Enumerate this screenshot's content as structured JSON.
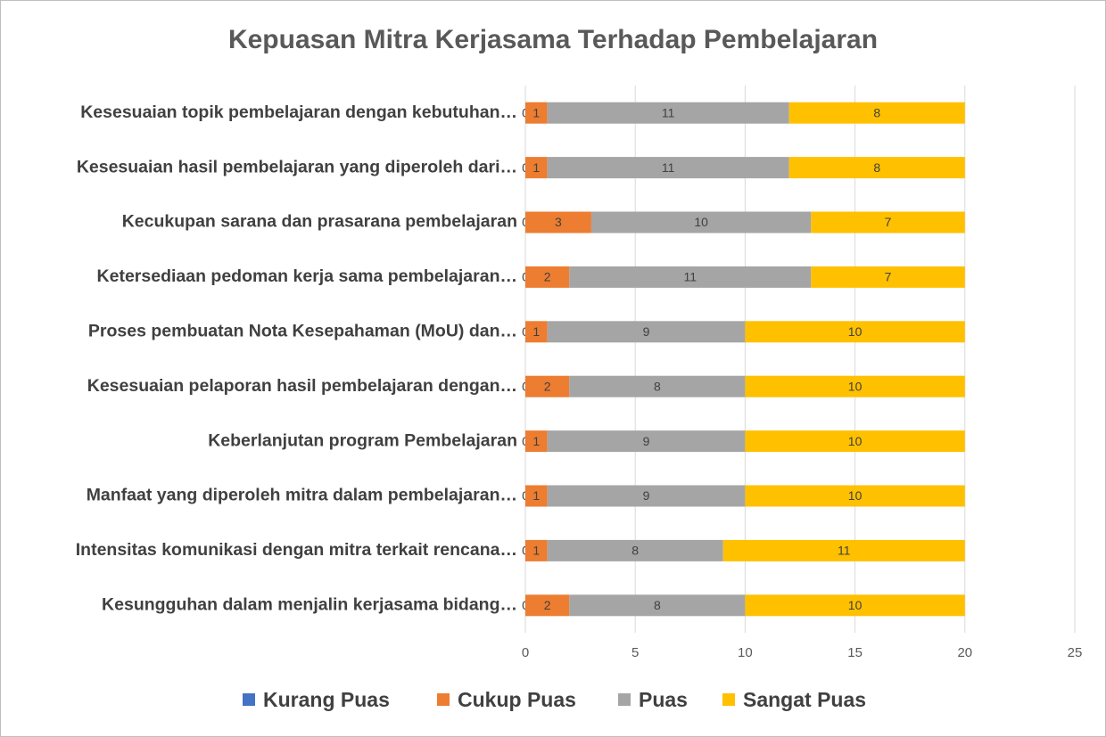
{
  "chart_data": {
    "type": "stacked_barh",
    "title": "Kepuasan Mitra Kerjasama Terhadap Pembelajaran",
    "categories": [
      "Kesesuaian topik pembelajaran dengan kebutuhan…",
      "Kesesuaian hasil pembelajaran yang diperoleh dari…",
      "Kecukupan sarana dan prasarana pembelajaran",
      "Ketersediaan pedoman kerja sama pembelajaran…",
      "Proses pembuatan Nota Kesepahaman (MoU) dan…",
      "Kesesuaian pelaporan hasil pembelajaran dengan…",
      "Keberlanjutan program Pembelajaran",
      "Manfaat yang diperoleh mitra dalam pembelajaran…",
      "Intensitas komunikasi dengan mitra terkait rencana…",
      "Kesungguhan dalam menjalin kerjasama bidang…"
    ],
    "series": [
      {
        "name": "Kurang Puas",
        "color": "#4472c4",
        "values": [
          0,
          0,
          0,
          0,
          0,
          0,
          0,
          0,
          0,
          0
        ]
      },
      {
        "name": "Cukup Puas",
        "color": "#ed7d31",
        "values": [
          1,
          1,
          3,
          2,
          1,
          2,
          1,
          1,
          1,
          2
        ]
      },
      {
        "name": "Puas",
        "color": "#a5a5a5",
        "values": [
          11,
          11,
          10,
          11,
          9,
          8,
          9,
          9,
          8,
          8
        ]
      },
      {
        "name": "Sangat Puas",
        "color": "#ffc000",
        "values": [
          8,
          8,
          7,
          7,
          10,
          10,
          10,
          10,
          11,
          10
        ]
      }
    ],
    "xlim": [
      0,
      25
    ],
    "xticks": [
      0,
      5,
      10,
      15,
      20,
      25
    ],
    "grid": true,
    "legend": "bottom"
  }
}
